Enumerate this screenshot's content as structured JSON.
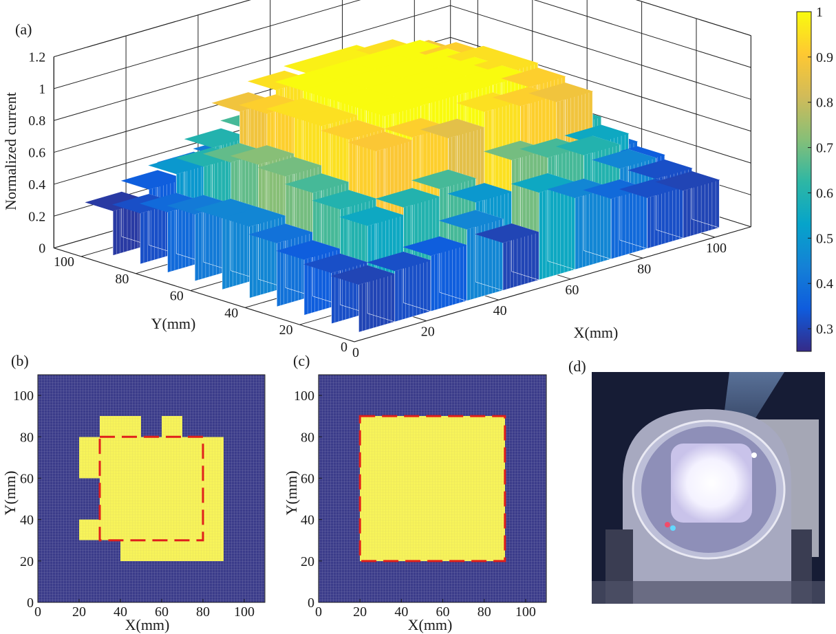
{
  "chart_data": [
    {
      "panel": "(a)",
      "type": "surface3d",
      "zlabel": "Normalized current",
      "xlabel": "X(mm)",
      "ylabel": "Y(mm)",
      "xticks": [
        0,
        20,
        40,
        60,
        80,
        100
      ],
      "yticks": [
        0,
        20,
        40,
        60,
        80,
        100
      ],
      "zticks": [
        "0",
        "0.2",
        "0.4",
        "0.6",
        "0.8",
        "1",
        "1.2"
      ],
      "xlim": [
        0,
        110
      ],
      "ylim": [
        0,
        110
      ],
      "zlim": [
        0,
        1.2
      ],
      "grid": true,
      "colorbar": {
        "range": [
          0.25,
          1.0
        ],
        "ticks": [
          "0.3",
          "0.4",
          "0.5",
          "0.6",
          "0.7",
          "0.8",
          "0.9",
          "1"
        ],
        "colormap": [
          "#352a87",
          "#0f5cdd",
          "#1481d6",
          "#06a4ca",
          "#2eb7a4",
          "#87bf77",
          "#d1bb59",
          "#fec832",
          "#f9fb0e"
        ]
      },
      "surface": {
        "grid_x": [
          10,
          20,
          30,
          40,
          50,
          60,
          70,
          80,
          90,
          100
        ],
        "grid_y": [
          10,
          20,
          30,
          40,
          50,
          60,
          70,
          80,
          90,
          100
        ],
        "z": [
          [
            0.3,
            0.32,
            0.35,
            0.45,
            0.3,
            0.55,
            0.45,
            0.38,
            0.32,
            0.3
          ],
          [
            0.32,
            0.55,
            0.6,
            0.65,
            0.5,
            0.7,
            0.65,
            0.6,
            0.45,
            0.32
          ],
          [
            0.35,
            0.6,
            0.9,
            0.92,
            0.85,
            0.95,
            0.92,
            0.88,
            0.55,
            0.35
          ],
          [
            0.4,
            0.65,
            0.92,
            1.0,
            1.0,
            1.0,
            1.0,
            0.92,
            0.6,
            0.38
          ],
          [
            0.45,
            0.7,
            0.95,
            1.0,
            1.0,
            1.0,
            1.0,
            0.95,
            0.62,
            0.4
          ],
          [
            0.45,
            0.72,
            0.95,
            1.0,
            1.0,
            1.0,
            1.0,
            0.95,
            0.65,
            0.4
          ],
          [
            0.42,
            0.68,
            0.92,
            1.0,
            1.0,
            1.0,
            1.0,
            0.92,
            0.6,
            0.38
          ],
          [
            0.38,
            0.6,
            0.88,
            0.95,
            0.98,
            0.98,
            0.95,
            0.88,
            0.55,
            0.35
          ],
          [
            0.32,
            0.5,
            0.6,
            0.65,
            0.62,
            0.65,
            0.6,
            0.55,
            0.45,
            0.32
          ],
          [
            0.28,
            0.35,
            0.4,
            0.42,
            0.4,
            0.42,
            0.4,
            0.38,
            0.32,
            0.28
          ]
        ]
      }
    },
    {
      "panel": "(b)",
      "type": "heatmap",
      "xlabel": "X(mm)",
      "ylabel": "Y(mm)",
      "xticks": [
        0,
        20,
        40,
        60,
        80,
        100
      ],
      "yticks": [
        0,
        20,
        40,
        60,
        80,
        100
      ],
      "xlim": [
        0,
        110
      ],
      "ylim": [
        0,
        110
      ],
      "background_color": "#3b3c8a",
      "region_color": "#f7f35a",
      "outline_color": "#e0201b",
      "region_rects": [
        {
          "x": [
            40,
            90
          ],
          "y": [
            20,
            30
          ]
        },
        {
          "x": [
            20,
            90
          ],
          "y": [
            30,
            40
          ]
        },
        {
          "x": [
            30,
            90
          ],
          "y": [
            40,
            60
          ]
        },
        {
          "x": [
            20,
            90
          ],
          "y": [
            60,
            80
          ]
        },
        {
          "x": [
            30,
            50
          ],
          "y": [
            80,
            90
          ]
        },
        {
          "x": [
            60,
            70
          ],
          "y": [
            80,
            90
          ]
        }
      ],
      "dashed_square": {
        "x": [
          30,
          80
        ],
        "y": [
          30,
          80
        ]
      }
    },
    {
      "panel": "(c)",
      "type": "heatmap",
      "xlabel": "X(mm)",
      "ylabel": "Y(mm)",
      "xticks": [
        0,
        20,
        40,
        60,
        80,
        100
      ],
      "yticks": [
        0,
        20,
        40,
        60,
        80,
        100
      ],
      "xlim": [
        0,
        110
      ],
      "ylim": [
        0,
        110
      ],
      "background_color": "#3b3c8a",
      "region_color": "#f7f35a",
      "outline_color": "#e0201b",
      "region_rects": [
        {
          "x": [
            20,
            90
          ],
          "y": [
            20,
            90
          ]
        }
      ],
      "dashed_square": {
        "x": [
          20,
          90
        ],
        "y": [
          20,
          90
        ]
      }
    }
  ],
  "photo": {
    "panel": "(d)"
  }
}
